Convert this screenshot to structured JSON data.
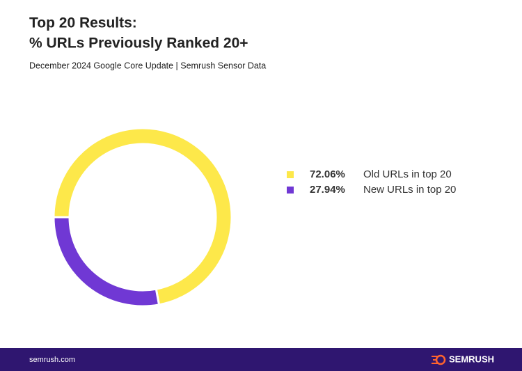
{
  "chart_data": {
    "type": "donut",
    "title": [
      "Top 20 Results:",
      "% URLs Previously Ranked 20+"
    ],
    "subtitle": "December 2024 Google Core Update | Semrush Sensor Data",
    "series": [
      {
        "name": "Old URLs in top 20",
        "color": "#fde84a",
        "values": [
          72.06
        ],
        "value_labels": [
          "72.06%"
        ]
      },
      {
        "name": "New URLs in top 20",
        "color": "#7038d4",
        "values": [
          27.94
        ],
        "value_labels": [
          "27.94%"
        ]
      }
    ]
  },
  "footer": {
    "site": "semrush.com",
    "brand": "SEMRUSH"
  }
}
